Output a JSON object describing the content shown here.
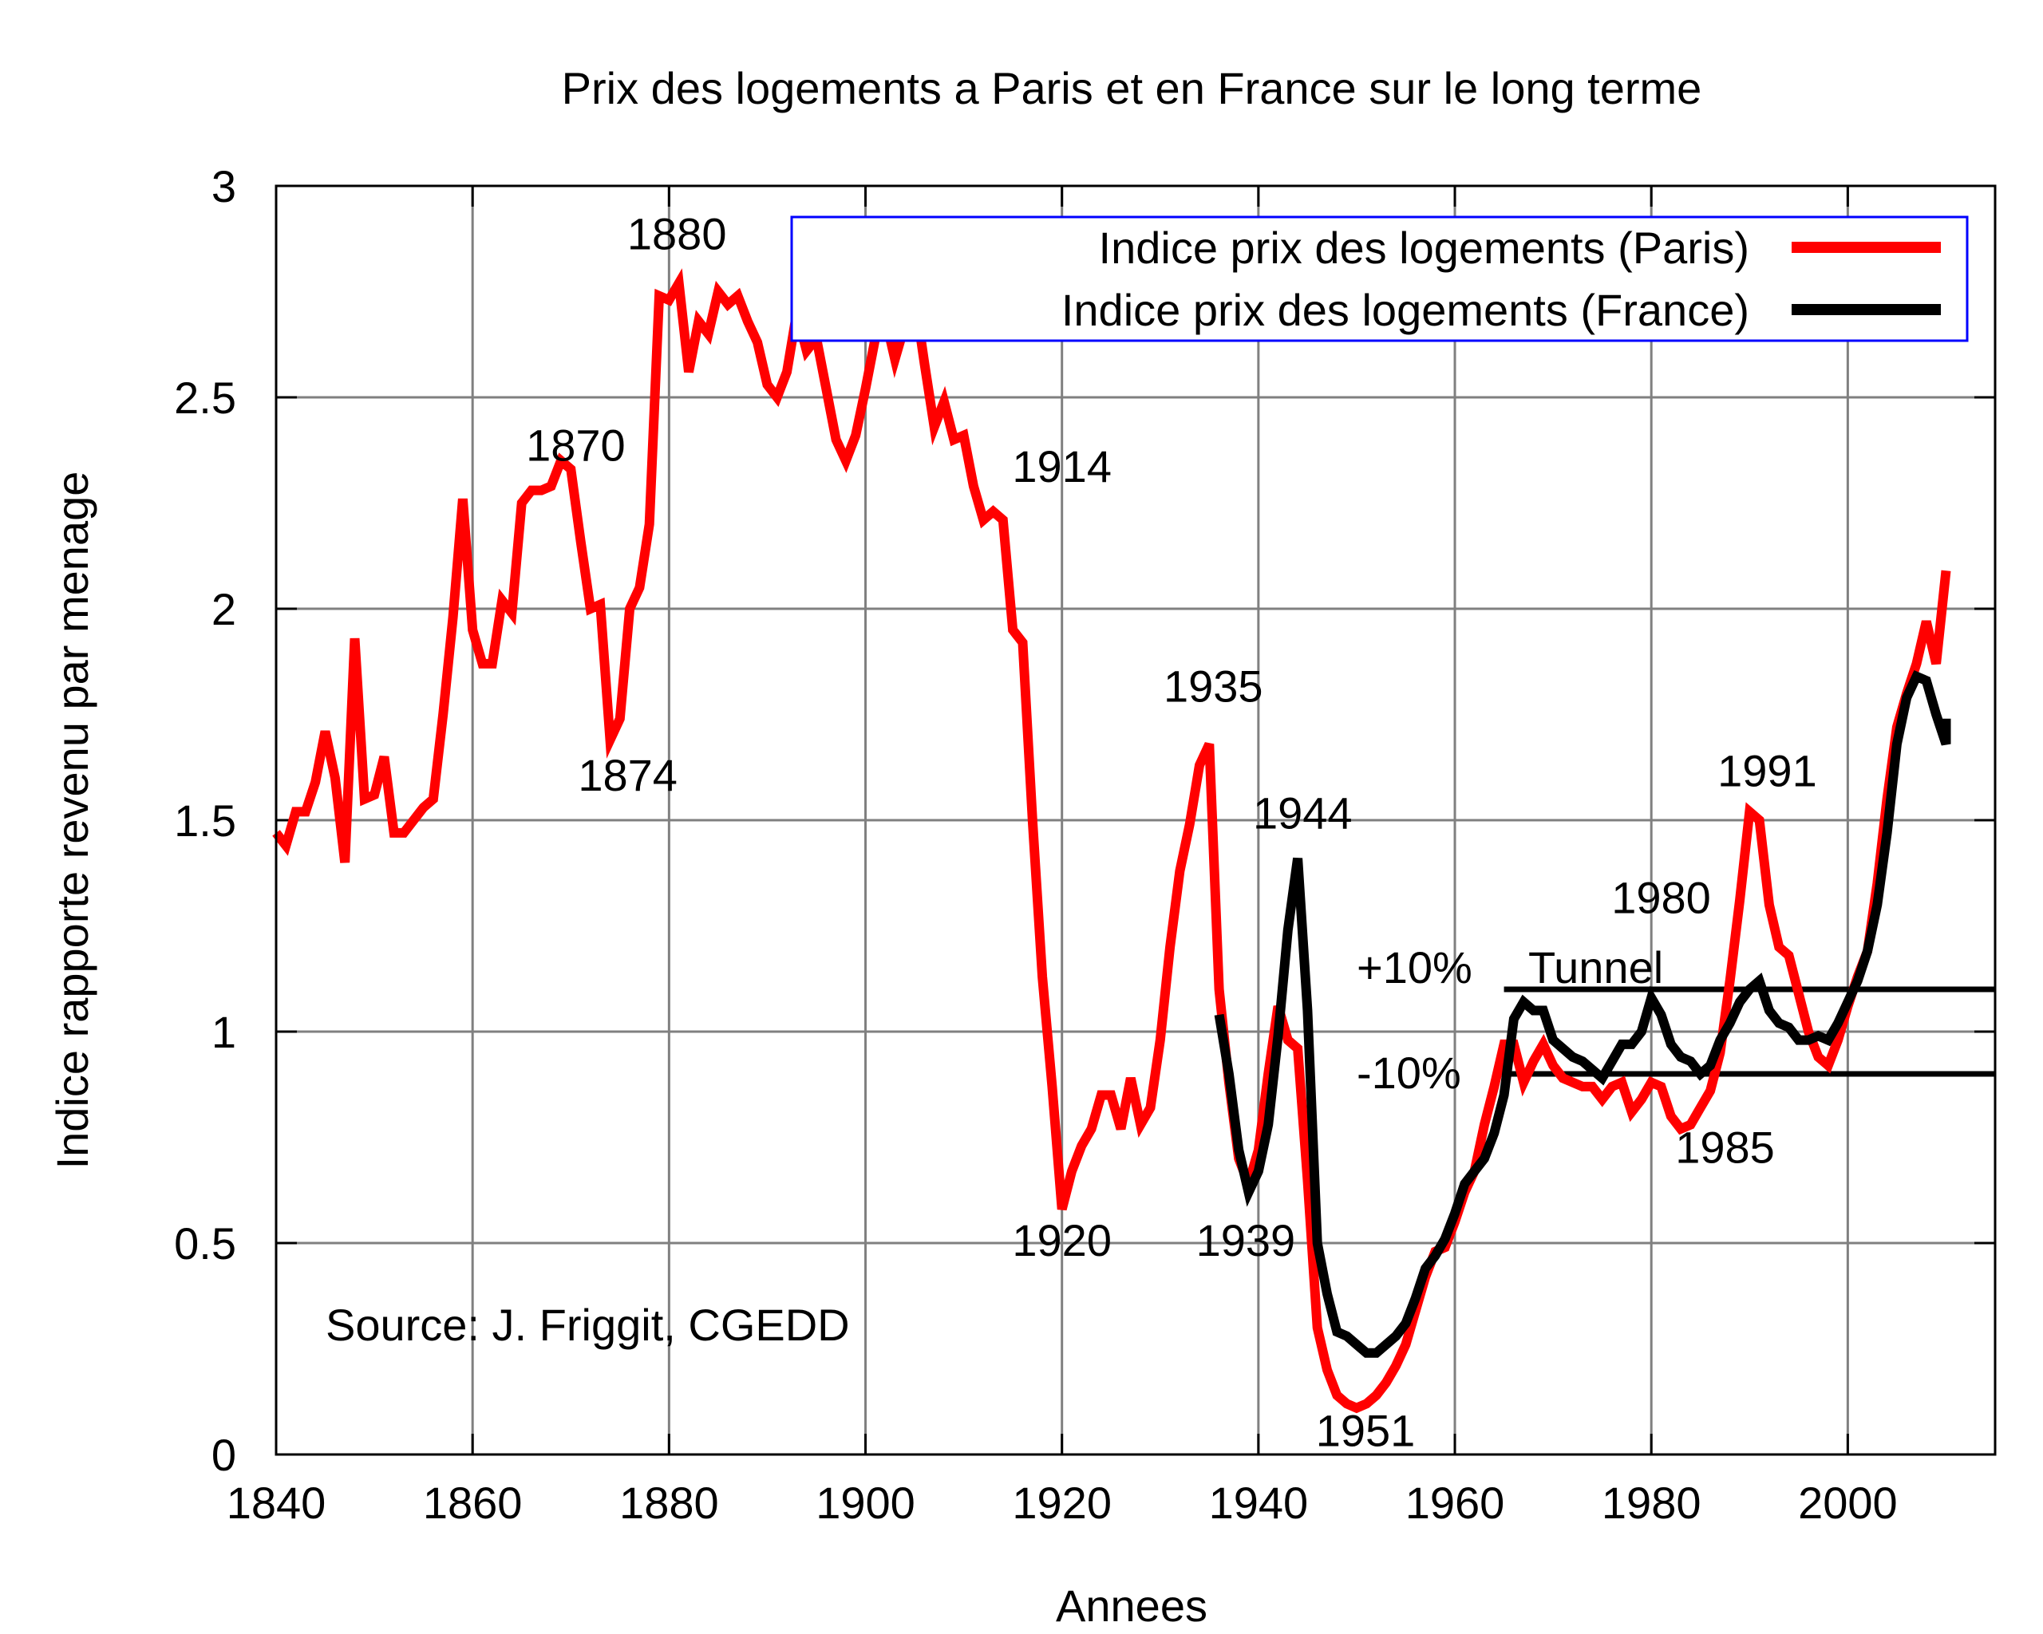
{
  "chart_data": {
    "type": "line",
    "title": "Prix des logements a Paris et en France sur le long terme",
    "xlabel": "Annees",
    "ylabel": "Indice rapporte revenu par menage",
    "xlim": [
      1840,
      2015
    ],
    "ylim": [
      0,
      3
    ],
    "xticks": [
      1840,
      1860,
      1880,
      1900,
      1920,
      1940,
      1960,
      1980,
      2000
    ],
    "xtick_labels": [
      "1840",
      "1860",
      "1880",
      "1900",
      "1920",
      "1940",
      "1960",
      "1980",
      "2000"
    ],
    "yticks": [
      0,
      0.5,
      1,
      1.5,
      2,
      2.5,
      3
    ],
    "ytick_labels": [
      "0",
      "0.5",
      "1",
      "1.5",
      "2",
      "2.5",
      "3"
    ],
    "grid": true,
    "legend": {
      "position": "top-right"
    },
    "source_note": "Source: J. Friggit, CGEDD",
    "colors": {
      "paris": "#ff0000",
      "france": "#000000",
      "legend_border": "#0000ff",
      "grid": "#808080"
    },
    "series": [
      {
        "name": "Indice prix des logements (Paris)",
        "points": [
          [
            1840,
            1.47
          ],
          [
            1841,
            1.44
          ],
          [
            1842,
            1.52
          ],
          [
            1843,
            1.52
          ],
          [
            1844,
            1.59
          ],
          [
            1845,
            1.71
          ],
          [
            1846,
            1.6
          ],
          [
            1847,
            1.4
          ],
          [
            1848,
            1.93
          ],
          [
            1849,
            1.55
          ],
          [
            1850,
            1.56
          ],
          [
            1851,
            1.65
          ],
          [
            1852,
            1.47
          ],
          [
            1853,
            1.47
          ],
          [
            1854,
            1.5
          ],
          [
            1855,
            1.53
          ],
          [
            1856,
            1.55
          ],
          [
            1857,
            1.75
          ],
          [
            1858,
            1.98
          ],
          [
            1859,
            2.26
          ],
          [
            1860,
            1.95
          ],
          [
            1861,
            1.87
          ],
          [
            1862,
            1.87
          ],
          [
            1863,
            2.02
          ],
          [
            1864,
            1.99
          ],
          [
            1865,
            2.25
          ],
          [
            1866,
            2.28
          ],
          [
            1867,
            2.28
          ],
          [
            1868,
            2.29
          ],
          [
            1869,
            2.35
          ],
          [
            1870,
            2.33
          ],
          [
            1871,
            2.16
          ],
          [
            1872,
            2.0
          ],
          [
            1873,
            2.01
          ],
          [
            1874,
            1.69
          ],
          [
            1875,
            1.74
          ],
          [
            1876,
            2.0
          ],
          [
            1877,
            2.05
          ],
          [
            1878,
            2.2
          ],
          [
            1879,
            2.74
          ],
          [
            1880,
            2.73
          ],
          [
            1881,
            2.77
          ],
          [
            1882,
            2.56
          ],
          [
            1883,
            2.68
          ],
          [
            1884,
            2.65
          ],
          [
            1885,
            2.75
          ],
          [
            1886,
            2.72
          ],
          [
            1887,
            2.74
          ],
          [
            1888,
            2.68
          ],
          [
            1889,
            2.63
          ],
          [
            1890,
            2.53
          ],
          [
            1891,
            2.5
          ],
          [
            1892,
            2.56
          ],
          [
            1893,
            2.7
          ],
          [
            1894,
            2.61
          ],
          [
            1895,
            2.64
          ],
          [
            1896,
            2.52
          ],
          [
            1897,
            2.4
          ],
          [
            1898,
            2.35
          ],
          [
            1899,
            2.41
          ],
          [
            1900,
            2.52
          ],
          [
            1901,
            2.64
          ],
          [
            1902,
            2.69
          ],
          [
            1903,
            2.59
          ],
          [
            1904,
            2.67
          ],
          [
            1905,
            2.74
          ],
          [
            1906,
            2.58
          ],
          [
            1907,
            2.43
          ],
          [
            1908,
            2.49
          ],
          [
            1909,
            2.4
          ],
          [
            1910,
            2.41
          ],
          [
            1911,
            2.29
          ],
          [
            1912,
            2.21
          ],
          [
            1913,
            2.23
          ],
          [
            1914,
            2.21
          ],
          [
            1915,
            1.95
          ],
          [
            1916,
            1.92
          ],
          [
            1917,
            1.5
          ],
          [
            1918,
            1.13
          ],
          [
            1919,
            0.87
          ],
          [
            1920,
            0.58
          ],
          [
            1921,
            0.67
          ],
          [
            1922,
            0.73
          ],
          [
            1923,
            0.77
          ],
          [
            1924,
            0.85
          ],
          [
            1925,
            0.85
          ],
          [
            1926,
            0.77
          ],
          [
            1927,
            0.89
          ],
          [
            1928,
            0.78
          ],
          [
            1929,
            0.82
          ],
          [
            1930,
            0.98
          ],
          [
            1931,
            1.2
          ],
          [
            1932,
            1.38
          ],
          [
            1933,
            1.49
          ],
          [
            1934,
            1.63
          ],
          [
            1935,
            1.68
          ],
          [
            1936,
            1.1
          ],
          [
            1937,
            0.88
          ],
          [
            1938,
            0.7
          ],
          [
            1939,
            0.64
          ],
          [
            1940,
            0.72
          ],
          [
            1941,
            0.9
          ],
          [
            1942,
            1.06
          ],
          [
            1943,
            0.98
          ],
          [
            1944,
            0.96
          ],
          [
            1945,
            0.65
          ],
          [
            1946,
            0.3
          ],
          [
            1947,
            0.2
          ],
          [
            1948,
            0.14
          ],
          [
            1949,
            0.12
          ],
          [
            1950,
            0.11
          ],
          [
            1951,
            0.12
          ],
          [
            1952,
            0.14
          ],
          [
            1953,
            0.17
          ],
          [
            1954,
            0.21
          ],
          [
            1955,
            0.26
          ],
          [
            1956,
            0.34
          ],
          [
            1957,
            0.42
          ],
          [
            1958,
            0.48
          ],
          [
            1959,
            0.49
          ],
          [
            1960,
            0.55
          ],
          [
            1961,
            0.62
          ],
          [
            1962,
            0.67
          ],
          [
            1963,
            0.78
          ],
          [
            1964,
            0.87
          ],
          [
            1965,
            0.97
          ],
          [
            1966,
            0.97
          ],
          [
            1967,
            0.88
          ],
          [
            1968,
            0.93
          ],
          [
            1969,
            0.97
          ],
          [
            1970,
            0.92
          ],
          [
            1971,
            0.89
          ],
          [
            1972,
            0.88
          ],
          [
            1973,
            0.87
          ],
          [
            1974,
            0.87
          ],
          [
            1975,
            0.84
          ],
          [
            1976,
            0.87
          ],
          [
            1977,
            0.88
          ],
          [
            1978,
            0.81
          ],
          [
            1979,
            0.84
          ],
          [
            1980,
            0.88
          ],
          [
            1981,
            0.87
          ],
          [
            1982,
            0.8
          ],
          [
            1983,
            0.77
          ],
          [
            1984,
            0.78
          ],
          [
            1985,
            0.82
          ],
          [
            1986,
            0.86
          ],
          [
            1987,
            0.95
          ],
          [
            1988,
            1.12
          ],
          [
            1989,
            1.31
          ],
          [
            1990,
            1.52
          ],
          [
            1991,
            1.5
          ],
          [
            1992,
            1.3
          ],
          [
            1993,
            1.2
          ],
          [
            1994,
            1.18
          ],
          [
            1995,
            1.09
          ],
          [
            1996,
            1.0
          ],
          [
            1997,
            0.94
          ],
          [
            1998,
            0.92
          ],
          [
            1999,
            0.98
          ],
          [
            2000,
            1.06
          ],
          [
            2001,
            1.13
          ],
          [
            2002,
            1.19
          ],
          [
            2003,
            1.35
          ],
          [
            2004,
            1.55
          ],
          [
            2005,
            1.72
          ],
          [
            2006,
            1.8
          ],
          [
            2007,
            1.87
          ],
          [
            2008,
            1.97
          ],
          [
            2009,
            1.87
          ],
          [
            2010,
            2.09
          ]
        ]
      },
      {
        "name": "Indice prix des logements (France)",
        "points": [
          [
            1936,
            1.04
          ],
          [
            1937,
            0.9
          ],
          [
            1938,
            0.72
          ],
          [
            1939,
            0.62
          ],
          [
            1940,
            0.67
          ],
          [
            1941,
            0.78
          ],
          [
            1942,
            0.99
          ],
          [
            1943,
            1.24
          ],
          [
            1944,
            1.41
          ],
          [
            1945,
            1.05
          ],
          [
            1946,
            0.5
          ],
          [
            1947,
            0.38
          ],
          [
            1948,
            0.29
          ],
          [
            1949,
            0.28
          ],
          [
            1950,
            0.26
          ],
          [
            1951,
            0.24
          ],
          [
            1952,
            0.24
          ],
          [
            1953,
            0.26
          ],
          [
            1954,
            0.28
          ],
          [
            1955,
            0.31
          ],
          [
            1956,
            0.37
          ],
          [
            1957,
            0.44
          ],
          [
            1958,
            0.47
          ],
          [
            1959,
            0.51
          ],
          [
            1960,
            0.57
          ],
          [
            1961,
            0.64
          ],
          [
            1962,
            0.67
          ],
          [
            1963,
            0.7
          ],
          [
            1964,
            0.76
          ],
          [
            1965,
            0.85
          ],
          [
            1966,
            1.03
          ],
          [
            1967,
            1.07
          ],
          [
            1968,
            1.05
          ],
          [
            1969,
            1.05
          ],
          [
            1970,
            0.98
          ],
          [
            1971,
            0.96
          ],
          [
            1972,
            0.94
          ],
          [
            1973,
            0.93
          ],
          [
            1974,
            0.91
          ],
          [
            1975,
            0.89
          ],
          [
            1976,
            0.93
          ],
          [
            1977,
            0.97
          ],
          [
            1978,
            0.97
          ],
          [
            1979,
            1.0
          ],
          [
            1980,
            1.08
          ],
          [
            1981,
            1.04
          ],
          [
            1982,
            0.97
          ],
          [
            1983,
            0.94
          ],
          [
            1984,
            0.93
          ],
          [
            1985,
            0.9
          ],
          [
            1986,
            0.92
          ],
          [
            1987,
            0.98
          ],
          [
            1988,
            1.02
          ],
          [
            1989,
            1.07
          ],
          [
            1990,
            1.1
          ],
          [
            1991,
            1.12
          ],
          [
            1992,
            1.05
          ],
          [
            1993,
            1.02
          ],
          [
            1994,
            1.01
          ],
          [
            1995,
            0.98
          ],
          [
            1996,
            0.98
          ],
          [
            1997,
            0.99
          ],
          [
            1998,
            0.98
          ],
          [
            1999,
            1.02
          ],
          [
            2000,
            1.07
          ],
          [
            2001,
            1.12
          ],
          [
            2002,
            1.19
          ],
          [
            2003,
            1.3
          ],
          [
            2004,
            1.47
          ],
          [
            2005,
            1.68
          ],
          [
            2006,
            1.79
          ],
          [
            2007,
            1.84
          ],
          [
            2008,
            1.83
          ],
          [
            2009,
            1.75
          ],
          [
            2010,
            1.68
          ],
          [
            2010,
            1.74
          ]
        ]
      }
    ],
    "tunnel": {
      "label": "Tunnel",
      "upper": {
        "label": "+10%",
        "y": 1.1,
        "x_start": 1965
      },
      "lower": {
        "label": "-10%",
        "y": 0.9,
        "x_start": 1965
      }
    },
    "annotations": [
      {
        "text": "1880",
        "x": 1880.8,
        "y": 2.85
      },
      {
        "text": "1870",
        "x": 1870.5,
        "y": 2.35
      },
      {
        "text": "1914",
        "x": 1920,
        "y": 2.3
      },
      {
        "text": "1874",
        "x": 1875.8,
        "y": 1.57
      },
      {
        "text": "1935",
        "x": 1935.4,
        "y": 1.78
      },
      {
        "text": "1944",
        "x": 1944.5,
        "y": 1.48
      },
      {
        "text": "1991",
        "x": 1991.8,
        "y": 1.58
      },
      {
        "text": "1980",
        "x": 1981.0,
        "y": 1.28
      },
      {
        "text": "1985",
        "x": 1987.5,
        "y": 0.69
      },
      {
        "text": "1920",
        "x": 1920.0,
        "y": 0.47
      },
      {
        "text": "1939",
        "x": 1938.7,
        "y": 0.47
      },
      {
        "text": "1951",
        "x": 1950.9,
        "y": 0.02
      }
    ]
  }
}
